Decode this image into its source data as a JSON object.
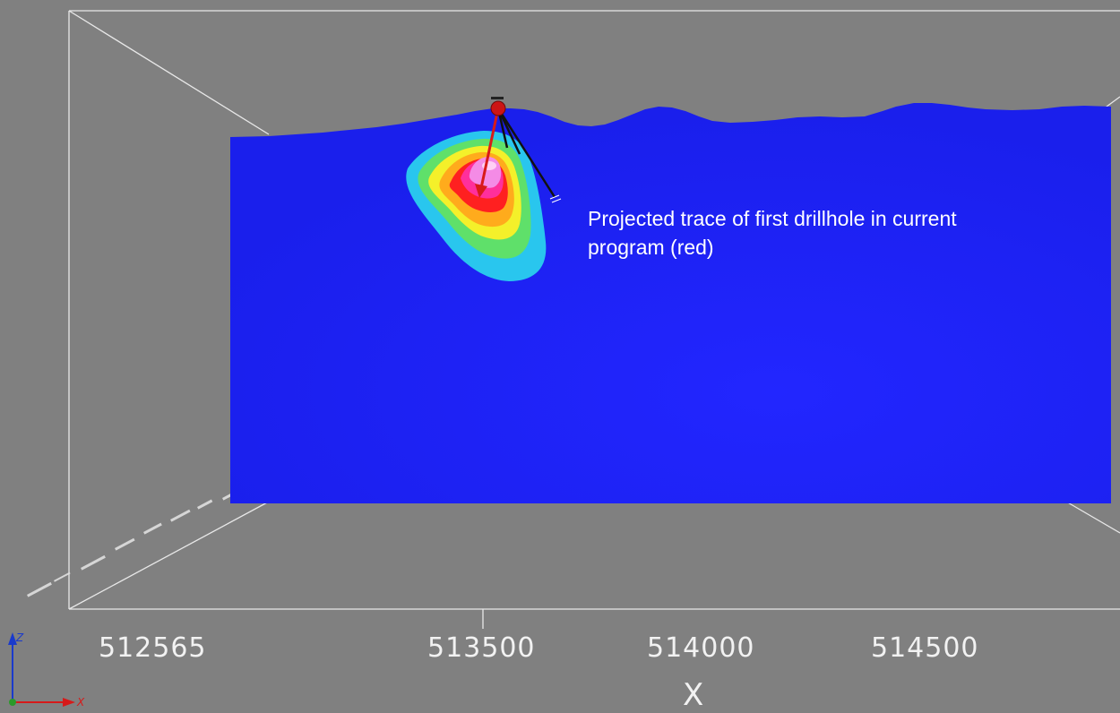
{
  "annotation": "Projected trace of first drillhole in current program (red)",
  "x_axis": {
    "title": "X",
    "ticks": [
      "512565",
      "513500",
      "514000",
      "514500"
    ]
  },
  "triad": {
    "z_label": "Z",
    "x_label": "X"
  },
  "colors": {
    "background": "#808080",
    "section_fill": "#1c21f5",
    "drill_trace_current": "#e41a1a",
    "drill_trace_other": "#111111",
    "contour_levels": [
      "#29c6ee",
      "#5fe06a",
      "#f4f02a",
      "#ffab1c",
      "#ff2020",
      "#ff2f9c",
      "#f48be6",
      "#ffffff"
    ]
  }
}
